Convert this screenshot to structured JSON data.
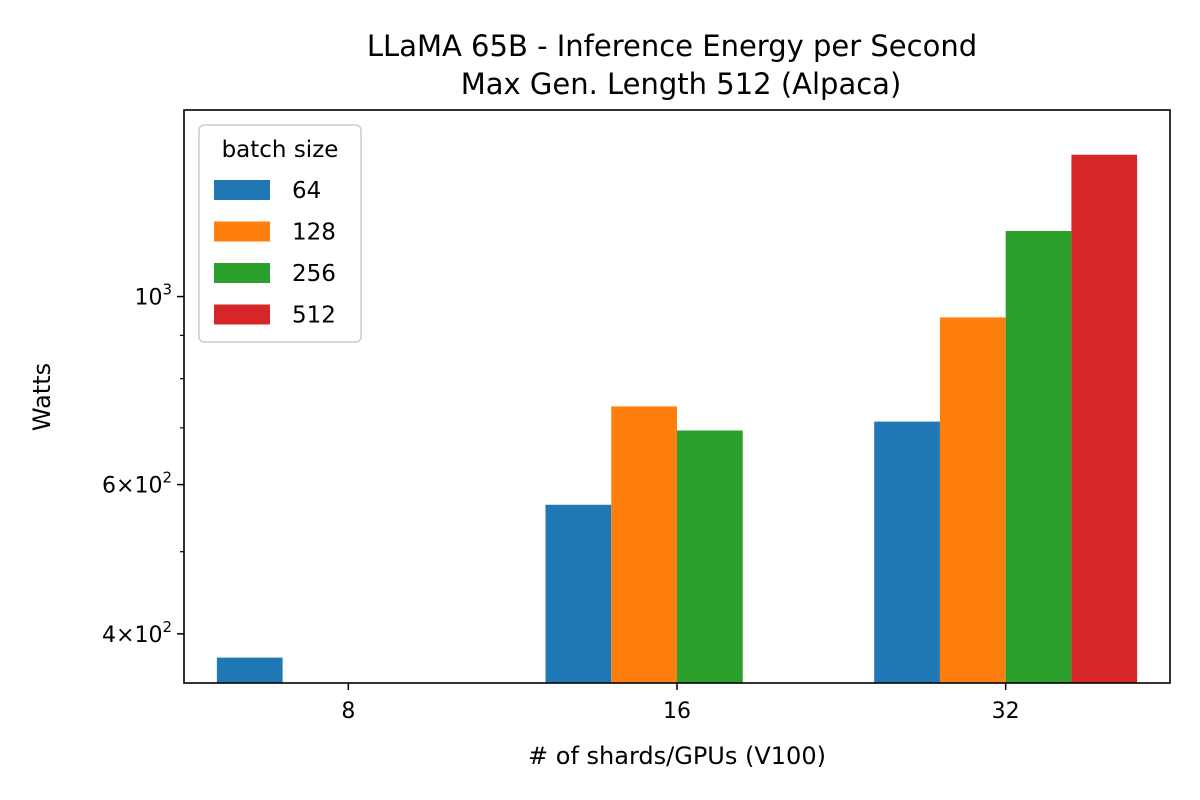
{
  "chart_data": {
    "type": "bar",
    "title": "LLaMA 65B - Inference Energy per Second",
    "subtitle": "Max Gen. Length 512 (Alpaca)",
    "xlabel": "# of shards/GPUs (V100)",
    "ylabel": "Watts",
    "yscale": "log",
    "ylim": [
      350,
      1660
    ],
    "categories": [
      "8",
      "16",
      "32"
    ],
    "series": [
      {
        "name": "64",
        "color": "#1f77b4",
        "values": [
          375,
          568,
          712
        ]
      },
      {
        "name": "128",
        "color": "#ff7f0e",
        "values": [
          null,
          742,
          945
        ]
      },
      {
        "name": "256",
        "color": "#2ca02c",
        "values": [
          null,
          695,
          1195
        ]
      },
      {
        "name": "512",
        "color": "#d62728",
        "values": [
          null,
          null,
          1470
        ]
      }
    ],
    "y_tick_labels": [
      {
        "value": 400,
        "base": "4",
        "exp": "2"
      },
      {
        "value": 600,
        "base": "6",
        "exp": "2"
      },
      {
        "value": 1000,
        "base": null,
        "exp": "3"
      }
    ],
    "y_minor_ticks": [
      500,
      700,
      800,
      900
    ],
    "legend": {
      "title": "batch size",
      "location": "upper-left"
    },
    "grid": false
  }
}
